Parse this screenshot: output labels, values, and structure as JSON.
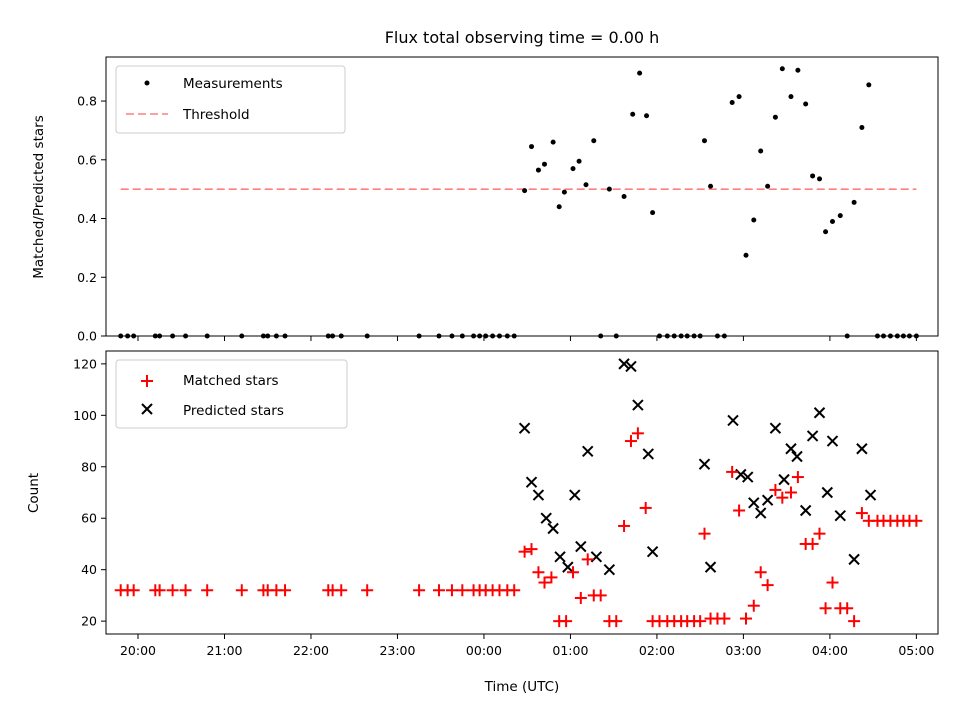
{
  "colors": {
    "measurement": "#000000",
    "threshold": "#ff7f7f",
    "matched": "#ff0000",
    "predicted": "#000000"
  },
  "chart_data": [
    {
      "type": "scatter",
      "title": "Flux total observing time = 0.00 h",
      "xlabel": "",
      "ylabel": "Matched/Predicted stars",
      "xlim": [
        -4.37,
        5.25
      ],
      "ylim": [
        0,
        0.95
      ],
      "yticks": [
        "0.0",
        "0.2",
        "0.4",
        "0.6",
        "0.8"
      ],
      "grid": false,
      "legend_position": "top-left",
      "threshold": {
        "name": "Threshold",
        "value": 0.5,
        "x": [
          -4.2,
          5.0
        ]
      },
      "series": [
        {
          "name": "Measurements",
          "points": [
            [
              -4.2,
              0
            ],
            [
              -4.12,
              0
            ],
            [
              -4.05,
              0
            ],
            [
              -3.8,
              0
            ],
            [
              -3.75,
              0
            ],
            [
              -3.6,
              0
            ],
            [
              -3.45,
              0
            ],
            [
              -3.2,
              0
            ],
            [
              -2.8,
              0
            ],
            [
              -2.55,
              0
            ],
            [
              -2.5,
              0
            ],
            [
              -2.4,
              0
            ],
            [
              -2.3,
              0
            ],
            [
              -1.8,
              0
            ],
            [
              -1.75,
              0
            ],
            [
              -1.65,
              0
            ],
            [
              -1.35,
              0
            ],
            [
              -0.75,
              0
            ],
            [
              -0.52,
              0
            ],
            [
              -0.37,
              0
            ],
            [
              -0.25,
              0
            ],
            [
              -0.12,
              0
            ],
            [
              -0.05,
              0
            ],
            [
              0.02,
              0
            ],
            [
              0.1,
              0
            ],
            [
              0.18,
              0
            ],
            [
              0.27,
              0
            ],
            [
              0.35,
              0
            ],
            [
              0.47,
              0.495
            ],
            [
              0.55,
              0.645
            ],
            [
              0.63,
              0.565
            ],
            [
              0.7,
              0.585
            ],
            [
              0.8,
              0.66
            ],
            [
              0.87,
              0.44
            ],
            [
              0.93,
              0.49
            ],
            [
              1.03,
              0.57
            ],
            [
              1.1,
              0.595
            ],
            [
              1.18,
              0.515
            ],
            [
              1.27,
              0.665
            ],
            [
              1.35,
              0
            ],
            [
              1.45,
              0.5
            ],
            [
              1.53,
              0
            ],
            [
              1.62,
              0.475
            ],
            [
              1.72,
              0.755
            ],
            [
              1.8,
              0.895
            ],
            [
              1.88,
              0.75
            ],
            [
              1.95,
              0.42
            ],
            [
              2.03,
              0
            ],
            [
              2.12,
              0
            ],
            [
              2.2,
              0
            ],
            [
              2.28,
              0
            ],
            [
              2.35,
              0
            ],
            [
              2.43,
              0
            ],
            [
              2.5,
              0
            ],
            [
              2.55,
              0.665
            ],
            [
              2.62,
              0.51
            ],
            [
              2.7,
              0
            ],
            [
              2.78,
              0
            ],
            [
              2.87,
              0.795
            ],
            [
              2.95,
              0.815
            ],
            [
              3.03,
              0.275
            ],
            [
              3.12,
              0.395
            ],
            [
              3.2,
              0.63
            ],
            [
              3.28,
              0.51
            ],
            [
              3.37,
              0.745
            ],
            [
              3.45,
              0.91
            ],
            [
              3.55,
              0.815
            ],
            [
              3.63,
              0.905
            ],
            [
              3.72,
              0.79
            ],
            [
              3.8,
              0.545
            ],
            [
              3.88,
              0.535
            ],
            [
              3.95,
              0.355
            ],
            [
              4.03,
              0.39
            ],
            [
              4.12,
              0.41
            ],
            [
              4.2,
              0
            ],
            [
              4.28,
              0.455
            ],
            [
              4.37,
              0.71
            ],
            [
              4.45,
              0.855
            ],
            [
              4.55,
              0
            ],
            [
              4.62,
              0
            ],
            [
              4.7,
              0
            ],
            [
              4.78,
              0
            ],
            [
              4.85,
              0
            ],
            [
              4.92,
              0
            ],
            [
              5.0,
              0
            ]
          ]
        }
      ]
    },
    {
      "type": "scatter",
      "title": "",
      "xlabel": "Time (UTC)",
      "ylabel": "Count",
      "xlim": [
        -4.37,
        5.25
      ],
      "ylim": [
        15,
        125
      ],
      "yticks": [
        "20",
        "40",
        "60",
        "80",
        "100",
        "120"
      ],
      "xticks": [
        {
          "value": -4,
          "label": "20:00"
        },
        {
          "value": -3,
          "label": "21:00"
        },
        {
          "value": -2,
          "label": "22:00"
        },
        {
          "value": -1,
          "label": "23:00"
        },
        {
          "value": 0,
          "label": "00:00"
        },
        {
          "value": 1,
          "label": "01:00"
        },
        {
          "value": 2,
          "label": "02:00"
        },
        {
          "value": 3,
          "label": "03:00"
        },
        {
          "value": 4,
          "label": "04:00"
        },
        {
          "value": 5,
          "label": "05:00"
        }
      ],
      "grid": false,
      "legend_position": "top-left",
      "series": [
        {
          "name": "Matched stars",
          "marker": "plus",
          "points": [
            [
              -4.2,
              32
            ],
            [
              -4.12,
              32
            ],
            [
              -4.05,
              32
            ],
            [
              -3.8,
              32
            ],
            [
              -3.75,
              32
            ],
            [
              -3.6,
              32
            ],
            [
              -3.45,
              32
            ],
            [
              -3.2,
              32
            ],
            [
              -2.8,
              32
            ],
            [
              -2.55,
              32
            ],
            [
              -2.5,
              32
            ],
            [
              -2.4,
              32
            ],
            [
              -2.3,
              32
            ],
            [
              -1.8,
              32
            ],
            [
              -1.75,
              32
            ],
            [
              -1.65,
              32
            ],
            [
              -1.35,
              32
            ],
            [
              -0.75,
              32
            ],
            [
              -0.52,
              32
            ],
            [
              -0.37,
              32
            ],
            [
              -0.25,
              32
            ],
            [
              -0.12,
              32
            ],
            [
              -0.05,
              32
            ],
            [
              0.02,
              32
            ],
            [
              0.1,
              32
            ],
            [
              0.18,
              32
            ],
            [
              0.27,
              32
            ],
            [
              0.35,
              32
            ],
            [
              0.47,
              47
            ],
            [
              0.55,
              48
            ],
            [
              0.63,
              39
            ],
            [
              0.7,
              35
            ],
            [
              0.78,
              37
            ],
            [
              0.87,
              20
            ],
            [
              0.95,
              20
            ],
            [
              1.03,
              39
            ],
            [
              1.12,
              29
            ],
            [
              1.2,
              44
            ],
            [
              1.27,
              30
            ],
            [
              1.35,
              30
            ],
            [
              1.45,
              20
            ],
            [
              1.53,
              20
            ],
            [
              1.62,
              57
            ],
            [
              1.7,
              90
            ],
            [
              1.78,
              93
            ],
            [
              1.87,
              64
            ],
            [
              1.95,
              20
            ],
            [
              2.03,
              20
            ],
            [
              2.12,
              20
            ],
            [
              2.2,
              20
            ],
            [
              2.28,
              20
            ],
            [
              2.35,
              20
            ],
            [
              2.43,
              20
            ],
            [
              2.5,
              20
            ],
            [
              2.55,
              54
            ],
            [
              2.62,
              21
            ],
            [
              2.7,
              21
            ],
            [
              2.78,
              21
            ],
            [
              2.87,
              78
            ],
            [
              2.95,
              63
            ],
            [
              3.03,
              21
            ],
            [
              3.12,
              26
            ],
            [
              3.2,
              39
            ],
            [
              3.28,
              34
            ],
            [
              3.37,
              71
            ],
            [
              3.45,
              68
            ],
            [
              3.55,
              70
            ],
            [
              3.63,
              76
            ],
            [
              3.72,
              50
            ],
            [
              3.8,
              50
            ],
            [
              3.88,
              54
            ],
            [
              3.95,
              25
            ],
            [
              4.03,
              35
            ],
            [
              4.12,
              25
            ],
            [
              4.2,
              25
            ],
            [
              4.28,
              20
            ],
            [
              4.37,
              62
            ],
            [
              4.45,
              59
            ],
            [
              4.55,
              59
            ],
            [
              4.62,
              59
            ],
            [
              4.7,
              59
            ],
            [
              4.78,
              59
            ],
            [
              4.85,
              59
            ],
            [
              4.92,
              59
            ],
            [
              5.0,
              59
            ]
          ]
        },
        {
          "name": "Predicted stars",
          "marker": "x",
          "points": [
            [
              0.47,
              95
            ],
            [
              0.55,
              74
            ],
            [
              0.63,
              69
            ],
            [
              0.72,
              60
            ],
            [
              0.8,
              56
            ],
            [
              0.88,
              45
            ],
            [
              0.97,
              41
            ],
            [
              1.05,
              69
            ],
            [
              1.12,
              49
            ],
            [
              1.2,
              86
            ],
            [
              1.3,
              45
            ],
            [
              1.45,
              40
            ],
            [
              1.62,
              120
            ],
            [
              1.7,
              119
            ],
            [
              1.78,
              104
            ],
            [
              1.9,
              85
            ],
            [
              1.95,
              47
            ],
            [
              2.55,
              81
            ],
            [
              2.62,
              41
            ],
            [
              2.88,
              98
            ],
            [
              2.97,
              77
            ],
            [
              3.05,
              76
            ],
            [
              3.12,
              66
            ],
            [
              3.2,
              62
            ],
            [
              3.28,
              67
            ],
            [
              3.37,
              95
            ],
            [
              3.47,
              75
            ],
            [
              3.55,
              87
            ],
            [
              3.62,
              84
            ],
            [
              3.72,
              63
            ],
            [
              3.8,
              92
            ],
            [
              3.88,
              101
            ],
            [
              3.97,
              70
            ],
            [
              4.03,
              90
            ],
            [
              4.12,
              61
            ],
            [
              4.28,
              44
            ],
            [
              4.37,
              87
            ],
            [
              4.47,
              69
            ]
          ]
        }
      ]
    }
  ]
}
